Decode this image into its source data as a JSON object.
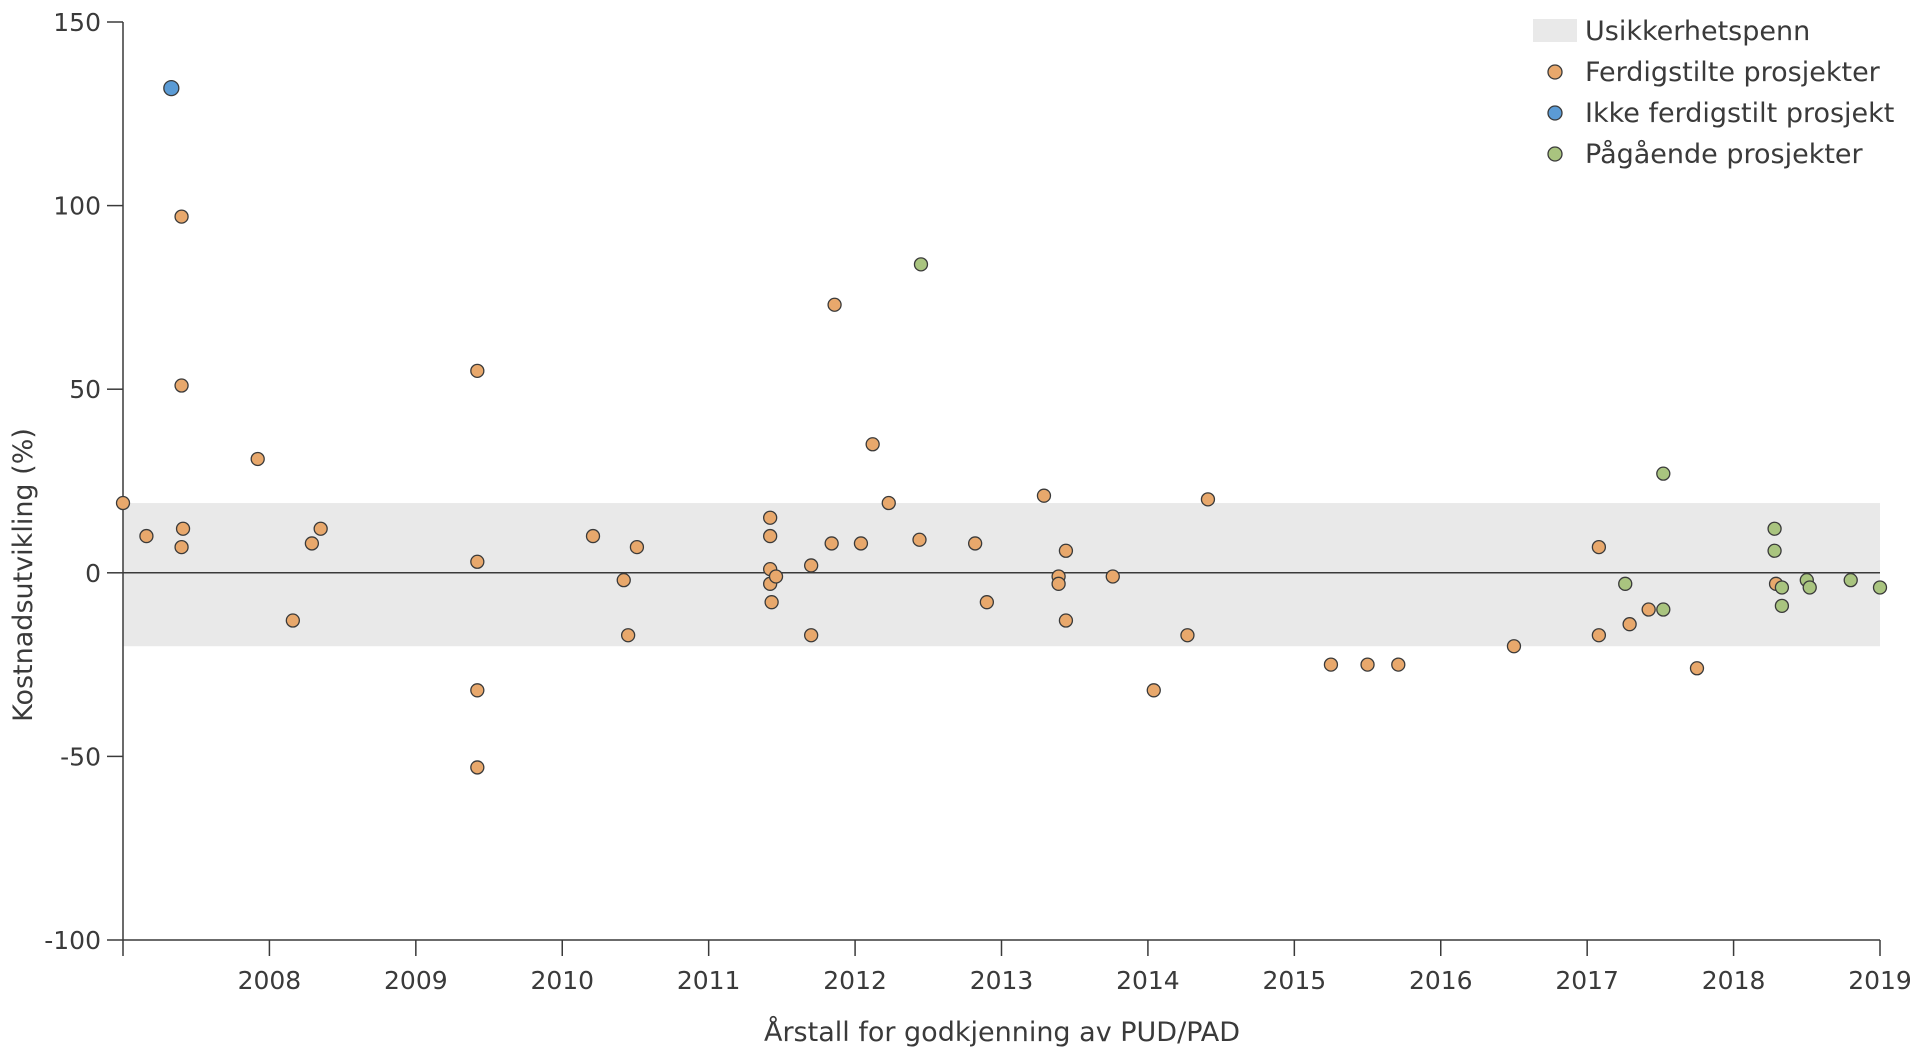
{
  "chart_data": {
    "type": "scatter",
    "xlabel": "Årstall for godkjenning av PUD/PAD",
    "ylabel": "Kostnadsutvikling (%)",
    "xlim": [
      2007.0,
      2019.0
    ],
    "ylim": [
      -100,
      150
    ],
    "x_ticks": [
      2008,
      2009,
      2010,
      2011,
      2012,
      2013,
      2014,
      2015,
      2016,
      2017,
      2018,
      2019
    ],
    "y_ticks": [
      -100,
      -50,
      0,
      50,
      100,
      150
    ],
    "uncertainty_band": {
      "label": "Usikkerhetspenn",
      "y_range": [
        -20,
        19
      ],
      "color": "#e9e9e9"
    },
    "legend_position": "top-right",
    "series": [
      {
        "name": "Ferdigstilte prosjekter",
        "color": "#e8a86c",
        "points": [
          [
            2007.0,
            19
          ],
          [
            2007.16,
            10
          ],
          [
            2007.4,
            97
          ],
          [
            2007.4,
            51
          ],
          [
            2007.41,
            12
          ],
          [
            2007.4,
            7
          ],
          [
            2007.92,
            31
          ],
          [
            2008.16,
            -13
          ],
          [
            2008.29,
            8
          ],
          [
            2008.35,
            12
          ],
          [
            2009.42,
            55
          ],
          [
            2009.42,
            3
          ],
          [
            2009.42,
            -32
          ],
          [
            2009.42,
            -53
          ],
          [
            2010.21,
            10
          ],
          [
            2010.42,
            -2
          ],
          [
            2010.45,
            -17
          ],
          [
            2010.51,
            7
          ],
          [
            2011.42,
            15
          ],
          [
            2011.42,
            10
          ],
          [
            2011.42,
            1
          ],
          [
            2011.42,
            -3
          ],
          [
            2011.43,
            -8
          ],
          [
            2011.46,
            -1
          ],
          [
            2011.7,
            2
          ],
          [
            2011.7,
            -17
          ],
          [
            2011.84,
            8
          ],
          [
            2011.86,
            73
          ],
          [
            2012.04,
            8
          ],
          [
            2012.12,
            35
          ],
          [
            2012.23,
            19
          ],
          [
            2012.44,
            9
          ],
          [
            2012.82,
            8
          ],
          [
            2012.9,
            -8
          ],
          [
            2013.29,
            21
          ],
          [
            2013.39,
            -1
          ],
          [
            2013.39,
            -3
          ],
          [
            2013.44,
            6
          ],
          [
            2013.44,
            -13
          ],
          [
            2013.76,
            -1
          ],
          [
            2014.04,
            -32
          ],
          [
            2014.27,
            -17
          ],
          [
            2014.41,
            20
          ],
          [
            2015.25,
            -25
          ],
          [
            2015.5,
            -25
          ],
          [
            2015.71,
            -25
          ],
          [
            2016.5,
            -20
          ],
          [
            2017.08,
            7
          ],
          [
            2017.08,
            -17
          ],
          [
            2017.29,
            -14
          ],
          [
            2017.42,
            -10
          ],
          [
            2017.75,
            -26
          ],
          [
            2018.29,
            -3
          ]
        ]
      },
      {
        "name": "Ikke ferdigstilt prosjekt",
        "color": "#5b9bd5",
        "points": [
          [
            2007.33,
            132
          ]
        ]
      },
      {
        "name": "Pågående prosjekter",
        "color": "#a9c47f",
        "points": [
          [
            2012.45,
            84
          ],
          [
            2017.26,
            -3
          ],
          [
            2017.52,
            27
          ],
          [
            2017.52,
            -10
          ],
          [
            2018.28,
            12
          ],
          [
            2018.28,
            6
          ],
          [
            2018.33,
            -4
          ],
          [
            2018.33,
            -9
          ],
          [
            2018.5,
            -2
          ],
          [
            2018.52,
            -4
          ],
          [
            2018.8,
            -2
          ],
          [
            2019.0,
            -4
          ]
        ]
      }
    ]
  }
}
